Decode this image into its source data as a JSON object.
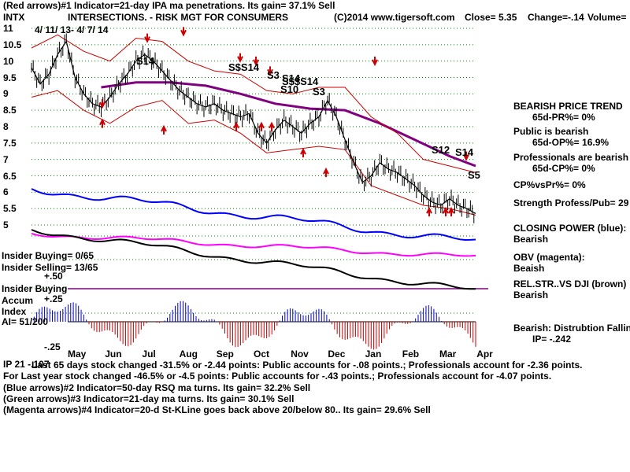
{
  "header": {
    "line1": "(Red arrows)#1 Indicator=21-day IPA ma penetrations. Its gain= 37.1% Sell",
    "ticker": "INTX",
    "title": "INTERSECTIONS. - RISK MGT FOR CONSUMERS",
    "copyright": "(C)2014 www.tigersoft.com",
    "close": "Close=  5.35",
    "change": "Change=-.14",
    "volume": "Volume=",
    "date_range": "4/ 11/ 13- 4/ 7/ 14"
  },
  "left_panel": {
    "insider_buying": "Insider Buying= 0/65",
    "insider_selling": "Insider Selling= 13/65",
    "insider_buying_label": "Insider Buying",
    "accum_label": "Accum",
    "index_label": "Index",
    "ai": "AI= 51/200",
    "plus50": "+.50",
    "plus25": "+.25",
    "minus25": "-.25"
  },
  "right_panel": {
    "trend_title": "BEARISH PRICE TREND",
    "pr": "65d-PR%= 0%",
    "public": "Public is bearish",
    "op": "65d-OP%= 16.9%",
    "professionals": "Professionals are bearish",
    "cp": "65d-CP%= 0%",
    "cpvspr": "CP%vsPr%=  0%",
    "strength": "Strength Profess/Pub= 29",
    "closing_power": "CLOSING POWER (blue):",
    "closing_power_val": "Bearish",
    "obv": "OBV (magenta):",
    "obv_val": "Beaish",
    "relstr": "REL.STR..VS DJI (brown)",
    "relstr_val": "Bearish",
    "dist": "Bearish: Distrubtion Falling",
    "ip": "IP= -.242"
  },
  "bottom": {
    "line0": "IP 21 -.107",
    "line1": "Last 65 days stock changed -31.5% or -2.44 points:  Public accounts for -.08 points.;  Professionals account for -2.36 points.",
    "line2": "For Last year stock changed -46.5% or -4.5 points:  Public accounts for -.43 points.;  Professionals account for -4.07 points.",
    "line3": "(Blue arrows)#2 Indicator=50-day RSQ ma turns. Its gain= 32.2% Sell",
    "line4": "(Green arrows)#3 Indicator=21-day ma turns. Its gain= 30.1% Sell",
    "line5": "(Magenta arrows)#4 Indicator=20-d St-KLine goes back above 20/below 80.. Its gain= 29.6% Sell"
  },
  "signals": [
    "S14",
    "S$S14",
    "S3",
    "S14",
    "S$$S14",
    "S10",
    "S3",
    "S12",
    "S14",
    "S5"
  ],
  "colors": {
    "price": "#000000",
    "bands": "#cc0000",
    "ma21": "#cc0000",
    "ma_long": "#800080",
    "closing_power": "#0000ff",
    "obv": "#ff00ff",
    "relstr": "#000000",
    "grid": "#008000",
    "accum_pos": "#0000cc",
    "accum_neg": "#cc0000"
  },
  "chart_data": {
    "type": "line",
    "title": "INTERSECTIONS. - RISK MGT FOR CONSUMERS",
    "ylim": [
      5,
      11
    ],
    "y_ticks": [
      "11",
      "10.5",
      "10",
      "9.5",
      "9",
      "8.5",
      "8",
      "7.5",
      "7",
      "6.5",
      "6",
      "5.5",
      "5"
    ],
    "month_labels": [
      "May",
      "Jun",
      "Jul",
      "Aug",
      "Sep",
      "Oct",
      "Nov",
      "Dec",
      "Jan",
      "Feb",
      "Mar",
      "Apr"
    ],
    "grid": true,
    "series": [
      {
        "key": "price",
        "x": [
          0,
          5,
          10,
          15,
          20,
          25,
          30,
          35,
          40,
          45,
          50,
          55,
          60,
          65,
          70,
          75,
          80,
          85,
          90,
          95,
          100,
          105,
          110,
          115,
          120,
          125,
          130,
          135,
          140,
          145,
          150,
          155,
          160,
          165,
          170,
          175,
          180,
          185,
          190,
          195,
          200,
          205,
          210,
          215,
          220,
          225,
          230,
          235,
          240,
          245,
          250,
          255
        ],
        "values": [
          9.8,
          9.3,
          9.6,
          10.2,
          10.6,
          9.5,
          9.0,
          8.7,
          8.6,
          8.9,
          9.3,
          9.6,
          10.0,
          10.2,
          10.0,
          9.7,
          9.4,
          9.1,
          8.9,
          8.7,
          8.6,
          8.7,
          8.5,
          8.4,
          8.3,
          8.4,
          7.8,
          7.5,
          7.9,
          8.2,
          8.0,
          7.8,
          8.1,
          8.3,
          8.8,
          8.3,
          7.6,
          6.9,
          6.3,
          6.5,
          6.9,
          6.7,
          6.6,
          6.4,
          6.2,
          5.9,
          5.7,
          5.6,
          5.8,
          5.6,
          5.5,
          5.35
        ]
      },
      {
        "key": "ma_long",
        "x": [
          40,
          60,
          80,
          100,
          120,
          140,
          160,
          180,
          200,
          220,
          240,
          255
        ],
        "values": [
          9.2,
          9.35,
          9.35,
          9.25,
          9.0,
          8.7,
          8.55,
          8.5,
          8.1,
          7.6,
          7.1,
          6.8
        ]
      },
      {
        "key": "band_upper",
        "x": [
          0,
          15,
          30,
          45,
          60,
          75,
          90,
          105,
          120,
          135,
          150,
          165,
          180,
          195,
          210,
          225,
          240,
          255
        ],
        "values": [
          10.4,
          10.8,
          10.3,
          10.0,
          10.7,
          10.6,
          10.0,
          9.7,
          9.6,
          9.1,
          9.0,
          9.2,
          9.2,
          8.3,
          7.8,
          7.0,
          6.8,
          6.6
        ]
      },
      {
        "key": "band_lower",
        "x": [
          0,
          15,
          30,
          45,
          60,
          75,
          90,
          105,
          120,
          135,
          150,
          165,
          180,
          195,
          210,
          225,
          240,
          255
        ],
        "values": [
          8.9,
          9.1,
          8.5,
          8.1,
          8.6,
          8.8,
          8.1,
          8.2,
          7.8,
          7.2,
          7.3,
          7.4,
          7.3,
          6.2,
          5.9,
          5.6,
          5.5,
          5.3
        ]
      }
    ]
  }
}
